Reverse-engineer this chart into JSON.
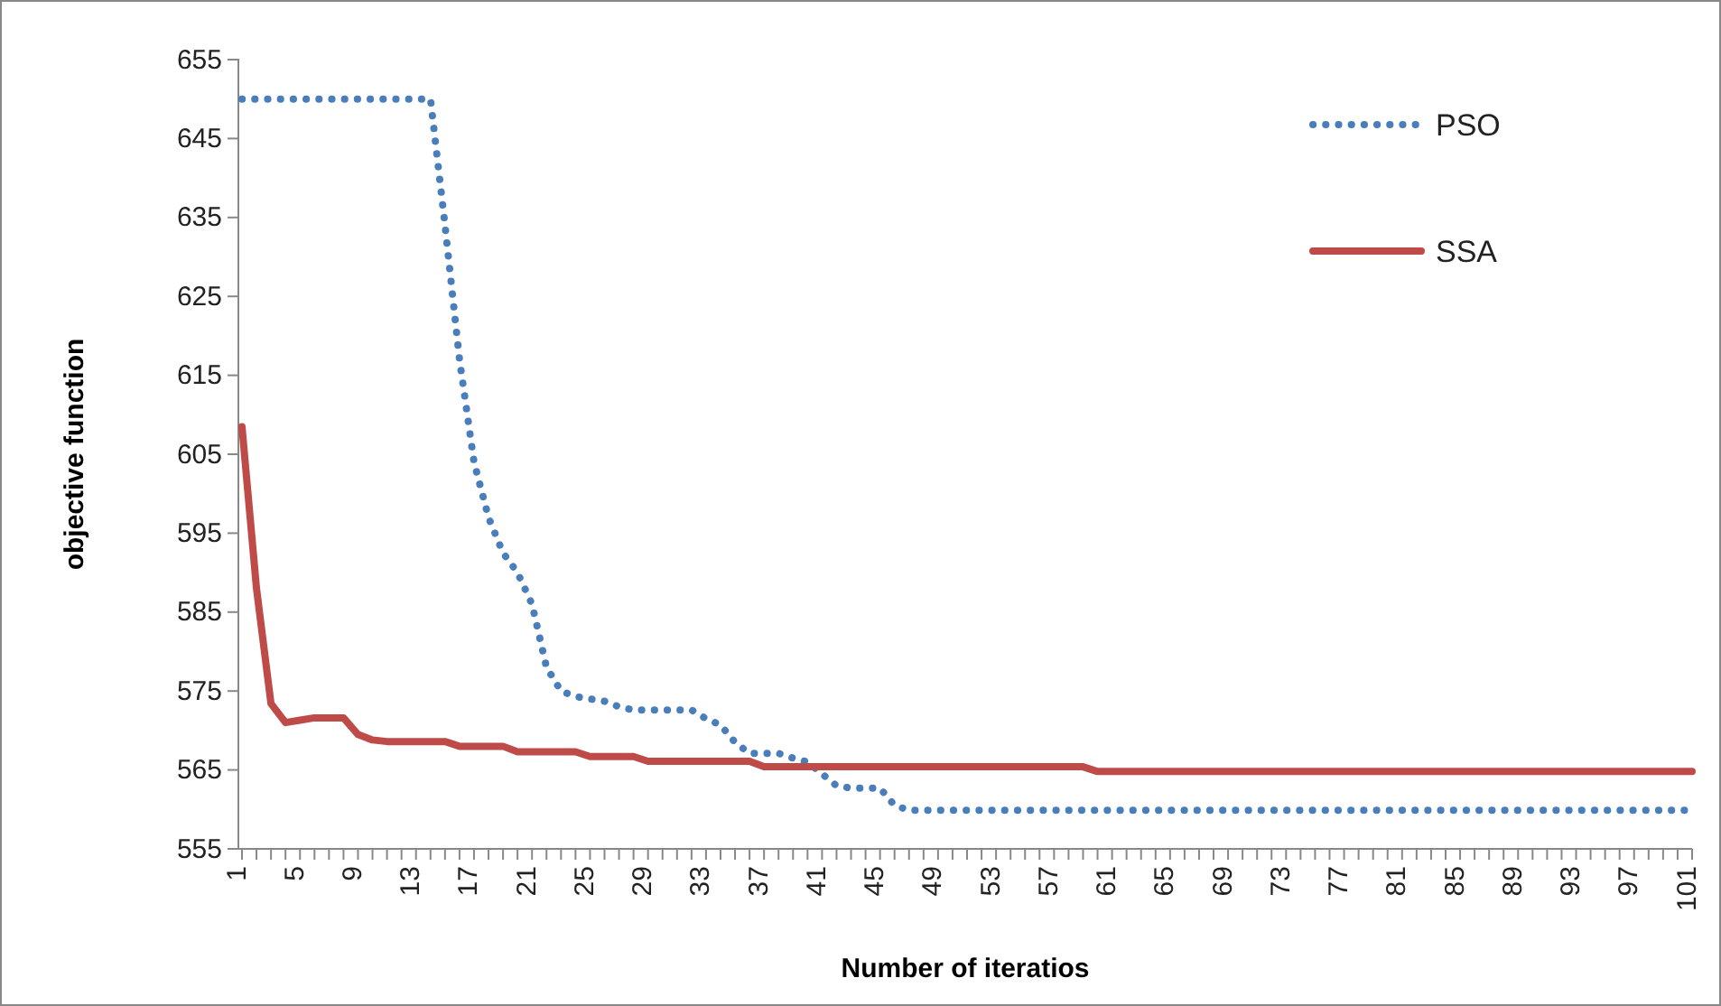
{
  "chart_data": {
    "type": "line",
    "xlabel": "Number of iteratios",
    "ylabel": "objective function",
    "categories": [
      "1",
      null,
      null,
      null,
      "5",
      null,
      null,
      null,
      "9",
      null,
      null,
      null,
      "13",
      null,
      null,
      null,
      "17",
      null,
      null,
      null,
      "21",
      null,
      null,
      null,
      "25",
      null,
      null,
      null,
      "29",
      null,
      null,
      null,
      "33",
      null,
      null,
      null,
      "37",
      null,
      null,
      null,
      "41",
      null,
      null,
      null,
      "45",
      null,
      null,
      null,
      "49",
      null,
      null,
      null,
      "53",
      null,
      null,
      null,
      "57",
      null,
      null,
      null,
      "61",
      null,
      null,
      null,
      "65",
      null,
      null,
      null,
      "69",
      null,
      null,
      null,
      "73",
      null,
      null,
      null,
      "77",
      null,
      null,
      null,
      "81",
      null,
      null,
      null,
      "85",
      null,
      null,
      null,
      "89",
      null,
      null,
      null,
      "93",
      null,
      null,
      null,
      "97",
      null,
      null,
      null,
      "101"
    ],
    "series": [
      {
        "name": "PSO",
        "color": "#4a7ebb",
        "line_style": "dotted",
        "values": [
          650,
          650,
          650,
          650,
          650,
          650,
          650,
          650,
          650,
          650,
          650,
          650,
          650,
          650,
          634,
          617,
          604,
          597,
          592.5,
          590,
          586,
          578,
          575,
          574.3,
          574,
          573.7,
          573,
          572.6,
          572.6,
          572.6,
          572.6,
          572.6,
          571.5,
          570.7,
          568.5,
          567.1,
          567.1,
          567.1,
          566.5,
          566,
          564.5,
          563,
          562.7,
          562.7,
          562.7,
          560.5,
          559.9,
          559.9,
          559.9,
          559.9,
          559.9,
          559.9,
          559.9,
          559.9,
          559.9,
          559.9,
          559.9,
          559.9,
          559.9,
          559.9,
          559.9,
          559.9,
          559.9,
          559.9,
          559.9,
          559.9,
          559.9,
          559.9,
          559.9,
          559.9,
          559.9,
          559.9,
          559.9,
          559.9,
          559.9,
          559.9,
          559.9,
          559.9,
          559.9,
          559.9,
          559.9,
          559.9,
          559.9,
          559.9,
          559.9,
          559.9,
          559.9,
          559.9,
          559.9,
          559.9,
          559.9,
          559.9,
          559.9,
          559.9,
          559.9,
          559.9,
          559.9,
          559.9,
          559.9,
          559.9,
          559.9
        ]
      },
      {
        "name": "SSA",
        "color": "#be4b48",
        "line_style": "solid",
        "values": [
          608.5,
          588,
          573.4,
          571,
          571.3,
          571.6,
          571.6,
          571.6,
          569.5,
          568.8,
          568.6,
          568.6,
          568.6,
          568.6,
          568.6,
          568,
          568,
          568,
          568,
          567.3,
          567.3,
          567.3,
          567.3,
          567.3,
          566.7,
          566.7,
          566.7,
          566.7,
          566.1,
          566.1,
          566.1,
          566.1,
          566.1,
          566.1,
          566.1,
          566.1,
          565.4,
          565.4,
          565.4,
          565.4,
          565.4,
          565.4,
          565.4,
          565.4,
          565.4,
          565.4,
          565.4,
          565.4,
          565.4,
          565.4,
          565.4,
          565.4,
          565.4,
          565.4,
          565.4,
          565.4,
          565.4,
          565.4,
          565.4,
          564.8,
          564.8,
          564.8,
          564.8,
          564.8,
          564.8,
          564.8,
          564.8,
          564.8,
          564.8,
          564.8,
          564.8,
          564.8,
          564.8,
          564.8,
          564.8,
          564.8,
          564.8,
          564.8,
          564.8,
          564.8,
          564.8,
          564.8,
          564.8,
          564.8,
          564.8,
          564.8,
          564.8,
          564.8,
          564.8,
          564.8,
          564.8,
          564.8,
          564.8,
          564.8,
          564.8,
          564.8,
          564.8,
          564.8,
          564.8,
          564.8,
          564.8
        ]
      }
    ],
    "ylim": [
      555,
      655
    ],
    "yticks": [
      555,
      565,
      575,
      585,
      595,
      605,
      615,
      625,
      635,
      645,
      655
    ],
    "grid": false,
    "legend": "top right",
    "marker": "none"
  }
}
